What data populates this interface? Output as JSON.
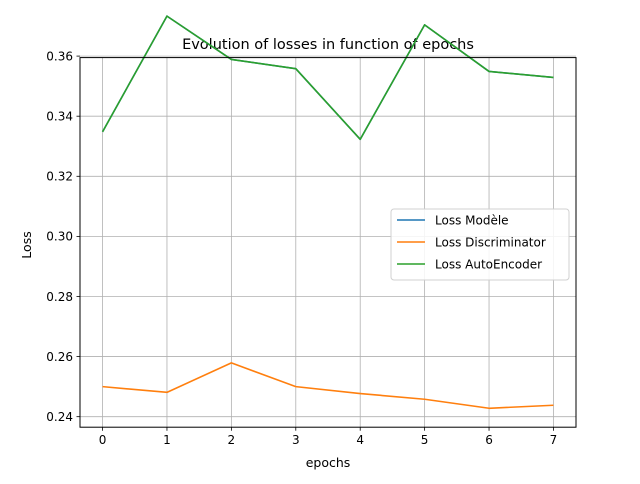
{
  "chart_data": {
    "type": "line",
    "title": "Evolution of losses in function of epochs",
    "xlabel": "epochs",
    "ylabel": "Loss",
    "x": [
      0,
      1,
      2,
      3,
      4,
      5,
      6,
      7
    ],
    "xlim": [
      -0.35,
      7.35
    ],
    "ylim": [
      0.2365,
      0.3595
    ],
    "xticks": [
      0,
      1,
      2,
      3,
      4,
      5,
      6,
      7
    ],
    "yticks": [
      0.24,
      0.26,
      0.28,
      0.3,
      0.32,
      0.34,
      0.36
    ],
    "ytick_labels": [
      "0.24",
      "0.26",
      "0.28",
      "0.30",
      "0.32",
      "0.34",
      "0.36"
    ],
    "grid": true,
    "legend_position": "center-right",
    "series": [
      {
        "name": "Loss Modèle",
        "color": "#1f77b4",
        "values": [
          0.3348,
          0.3733,
          0.3589,
          0.3558,
          0.3323,
          0.3704,
          0.3549,
          0.3529
        ]
      },
      {
        "name": "Loss Discriminator",
        "color": "#ff7f0e",
        "values": [
          0.25,
          0.2481,
          0.2579,
          0.25,
          0.2477,
          0.2458,
          0.2428,
          0.2438
        ]
      },
      {
        "name": "Loss AutoEncoder",
        "color": "#2ca02c",
        "values": [
          0.3348,
          0.3733,
          0.3589,
          0.3558,
          0.3323,
          0.3704,
          0.3549,
          0.3529
        ]
      }
    ]
  }
}
